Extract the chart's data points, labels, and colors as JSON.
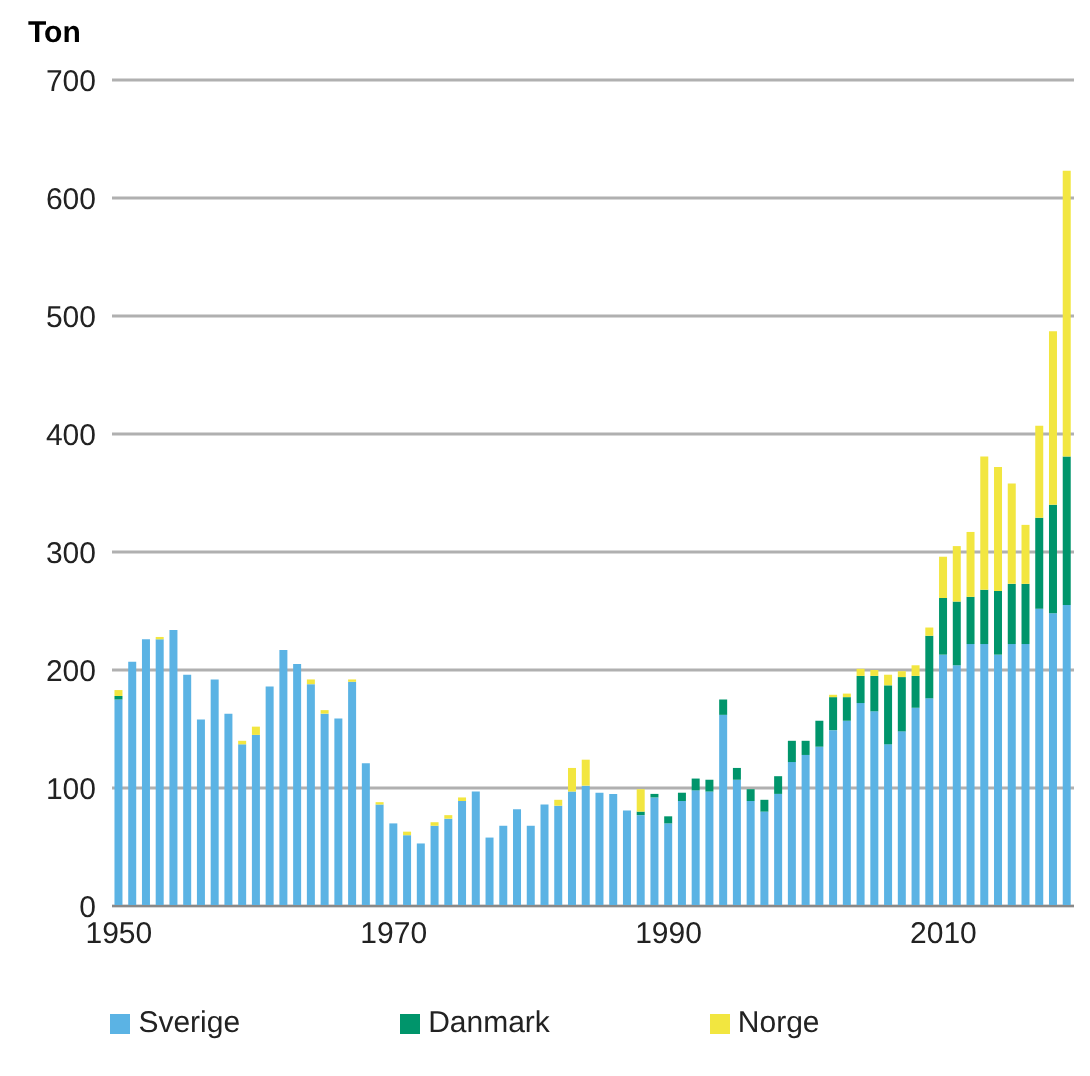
{
  "chart_data": {
    "type": "bar",
    "ylabel": "Ton",
    "stacked": true,
    "categories": [
      "1950",
      null,
      null,
      null,
      null,
      null,
      null,
      null,
      null,
      null,
      null,
      null,
      null,
      null,
      null,
      null,
      null,
      null,
      null,
      null,
      "1970",
      null,
      null,
      null,
      null,
      null,
      null,
      null,
      null,
      null,
      null,
      null,
      null,
      null,
      null,
      null,
      null,
      null,
      null,
      null,
      "1990",
      null,
      null,
      null,
      null,
      null,
      null,
      null,
      null,
      null,
      null,
      null,
      null,
      null,
      null,
      null,
      null,
      null,
      null,
      null,
      "2010",
      null,
      null,
      null,
      null,
      null,
      null,
      null,
      null,
      null
    ],
    "series": [
      {
        "name": "Sverige",
        "color": "#5bb3e4",
        "values": [
          175,
          207,
          226,
          226,
          234,
          196,
          158,
          192,
          163,
          137,
          145,
          186,
          217,
          205,
          188,
          163,
          159,
          190,
          121,
          86,
          70,
          60,
          53,
          68,
          74,
          89,
          97,
          58,
          68,
          82,
          68,
          86,
          85,
          97,
          102,
          96,
          95,
          81,
          77,
          92,
          70,
          89,
          98,
          97,
          162,
          107,
          89,
          80,
          95,
          122,
          128,
          135,
          149,
          157,
          172,
          165,
          137,
          148,
          168,
          176,
          213,
          204,
          222,
          222,
          213,
          222,
          222,
          252,
          248,
          255
        ]
      },
      {
        "name": "Danmark",
        "color": "#00956b",
        "values": [
          3,
          0,
          0,
          0,
          0,
          0,
          0,
          0,
          0,
          0,
          0,
          0,
          0,
          0,
          0,
          0,
          0,
          0,
          0,
          0,
          0,
          0,
          0,
          0,
          0,
          0,
          0,
          0,
          0,
          0,
          0,
          0,
          0,
          0,
          0,
          0,
          0,
          0,
          3,
          3,
          6,
          7,
          10,
          10,
          13,
          10,
          10,
          10,
          15,
          18,
          12,
          22,
          28,
          20,
          23,
          30,
          50,
          46,
          27,
          53,
          48,
          54,
          40,
          46,
          54,
          51,
          51,
          77,
          92,
          126
        ]
      },
      {
        "name": "Norge",
        "color": "#f2e640",
        "values": [
          5,
          0,
          0,
          2,
          0,
          0,
          0,
          0,
          0,
          3,
          7,
          0,
          0,
          0,
          4,
          3,
          0,
          2,
          0,
          2,
          0,
          3,
          0,
          3,
          3,
          3,
          0,
          0,
          0,
          0,
          0,
          0,
          5,
          20,
          22,
          0,
          0,
          0,
          19,
          0,
          0,
          0,
          0,
          0,
          0,
          0,
          0,
          0,
          0,
          0,
          0,
          0,
          2,
          3,
          6,
          5,
          9,
          5,
          9,
          7,
          35,
          47,
          55,
          113,
          105,
          85,
          50,
          78,
          147,
          242
        ]
      }
    ],
    "ylim": [
      0,
      700
    ],
    "yticks": [
      0,
      100,
      200,
      300,
      400,
      500,
      600,
      700
    ],
    "grid": "y",
    "legend": "bottom"
  }
}
